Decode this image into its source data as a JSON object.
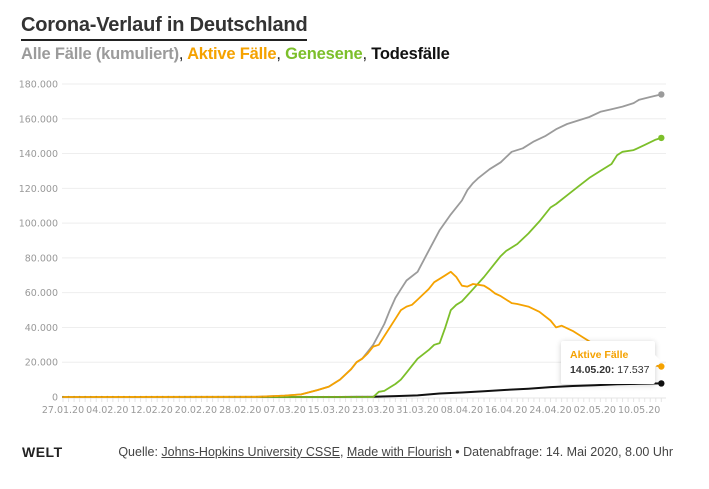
{
  "header": {
    "title": "Corona-Verlauf in Deutschland",
    "subtitle": {
      "all": "Alle Fälle (kumuliert)",
      "active": "Aktive Fälle",
      "recovered": "Genesene",
      "deaths": "Todesfälle",
      "separator": ","
    }
  },
  "colors": {
    "all": "#9b9b9b",
    "active": "#f5a200",
    "recovered": "#7cbf2a",
    "deaths": "#111111",
    "grid": "#eeeeee",
    "axis_text": "#999999"
  },
  "tooltip": {
    "series": "Aktive Fälle",
    "date": "14.05.20",
    "value": "17.537"
  },
  "footer": {
    "logo": "WELT",
    "source_prefix": "Quelle: ",
    "source_link1": "Johns-Hopkins University CSSE",
    "source_sep": ", ",
    "source_link2": "Made with Flourish",
    "source_suffix": " • Datenabfrage: 14. Mai 2020, 8.00 Uhr"
  },
  "chart_data": {
    "type": "line",
    "title": "Corona-Verlauf in Deutschland",
    "xlabel": "",
    "ylabel": "",
    "x_start": "27.01.20",
    "x_end": "14.05.20",
    "x_tick_labels": [
      "27.01.20",
      "04.02.20",
      "12.02.20",
      "20.02.20",
      "28.02.20",
      "07.03.20",
      "15.03.20",
      "23.03.20",
      "31.03.20",
      "08.04.20",
      "16.04.20",
      "24.04.20",
      "02.05.20",
      "10.05.20"
    ],
    "x_tick_days": [
      0,
      8,
      16,
      24,
      32,
      40,
      48,
      56,
      64,
      72,
      80,
      88,
      96,
      104
    ],
    "y_tick_labels": [
      "0",
      "20.000",
      "40.000",
      "60.000",
      "80.000",
      "100.000",
      "120.000",
      "140.000",
      "160.000",
      "180.000"
    ],
    "ylim": [
      0,
      180000
    ],
    "grid": true,
    "legend": "subtitle",
    "series": [
      {
        "name": "Alle Fälle (kumuliert)",
        "key": "all",
        "points": [
          [
            0,
            0
          ],
          [
            35,
            100
          ],
          [
            40,
            800
          ],
          [
            43,
            1500
          ],
          [
            46,
            4000
          ],
          [
            48,
            6000
          ],
          [
            50,
            10000
          ],
          [
            52,
            16000
          ],
          [
            53,
            20000
          ],
          [
            54,
            22000
          ],
          [
            55,
            26000
          ],
          [
            56,
            30000
          ],
          [
            57,
            36000
          ],
          [
            58,
            42000
          ],
          [
            59,
            50000
          ],
          [
            60,
            57000
          ],
          [
            61,
            62000
          ],
          [
            62,
            67000
          ],
          [
            64,
            72000
          ],
          [
            66,
            84000
          ],
          [
            68,
            96000
          ],
          [
            70,
            105000
          ],
          [
            72,
            113000
          ],
          [
            73,
            119000
          ],
          [
            74,
            123000
          ],
          [
            75,
            126000
          ],
          [
            77,
            131000
          ],
          [
            79,
            135000
          ],
          [
            80,
            138000
          ],
          [
            81,
            141000
          ],
          [
            83,
            143000
          ],
          [
            85,
            147000
          ],
          [
            87,
            150000
          ],
          [
            89,
            154000
          ],
          [
            91,
            157000
          ],
          [
            93,
            159000
          ],
          [
            95,
            161000
          ],
          [
            97,
            164000
          ],
          [
            99,
            165500
          ],
          [
            101,
            167000
          ],
          [
            103,
            169000
          ],
          [
            104,
            171000
          ],
          [
            106,
            172500
          ],
          [
            108,
            174000
          ]
        ]
      },
      {
        "name": "Aktive Fälle",
        "key": "active",
        "points": [
          [
            0,
            0
          ],
          [
            35,
            100
          ],
          [
            40,
            800
          ],
          [
            43,
            1500
          ],
          [
            46,
            4000
          ],
          [
            48,
            6000
          ],
          [
            50,
            10000
          ],
          [
            52,
            16000
          ],
          [
            53,
            20000
          ],
          [
            54,
            22000
          ],
          [
            55,
            25000
          ],
          [
            56,
            29000
          ],
          [
            57,
            30000
          ],
          [
            58,
            35000
          ],
          [
            59,
            40000
          ],
          [
            60,
            45000
          ],
          [
            61,
            50000
          ],
          [
            62,
            52000
          ],
          [
            63,
            53000
          ],
          [
            64,
            56000
          ],
          [
            65,
            59000
          ],
          [
            66,
            62000
          ],
          [
            67,
            66000
          ],
          [
            68,
            68000
          ],
          [
            69,
            70000
          ],
          [
            70,
            72000
          ],
          [
            71,
            69000
          ],
          [
            72,
            64000
          ],
          [
            73,
            63500
          ],
          [
            74,
            65000
          ],
          [
            75,
            64500
          ],
          [
            76,
            64000
          ],
          [
            77,
            62000
          ],
          [
            78,
            59500
          ],
          [
            79,
            58000
          ],
          [
            80,
            56000
          ],
          [
            81,
            54000
          ],
          [
            82,
            53500
          ],
          [
            84,
            52000
          ],
          [
            86,
            49000
          ],
          [
            88,
            44000
          ],
          [
            89,
            40000
          ],
          [
            90,
            41000
          ],
          [
            92,
            38000
          ],
          [
            94,
            34000
          ],
          [
            96,
            30000
          ],
          [
            98,
            27000
          ],
          [
            100,
            24000
          ],
          [
            102,
            21000
          ],
          [
            104,
            19500
          ],
          [
            106,
            18500
          ],
          [
            108,
            17537
          ]
        ]
      },
      {
        "name": "Genesene",
        "key": "recovered",
        "points": [
          [
            0,
            0
          ],
          [
            56,
            0
          ],
          [
            57,
            3000
          ],
          [
            58,
            3500
          ],
          [
            59,
            5500
          ],
          [
            60,
            7500
          ],
          [
            61,
            10000
          ],
          [
            62,
            14000
          ],
          [
            63,
            18000
          ],
          [
            64,
            22000
          ],
          [
            66,
            27000
          ],
          [
            67,
            30000
          ],
          [
            68,
            31000
          ],
          [
            69,
            40000
          ],
          [
            70,
            50000
          ],
          [
            71,
            53000
          ],
          [
            72,
            55000
          ],
          [
            74,
            62000
          ],
          [
            76,
            69000
          ],
          [
            78,
            77000
          ],
          [
            79,
            81000
          ],
          [
            80,
            84000
          ],
          [
            82,
            88000
          ],
          [
            84,
            94000
          ],
          [
            86,
            101000
          ],
          [
            88,
            109000
          ],
          [
            89,
            111000
          ],
          [
            91,
            116000
          ],
          [
            93,
            121000
          ],
          [
            95,
            126000
          ],
          [
            97,
            130000
          ],
          [
            99,
            134000
          ],
          [
            100,
            139000
          ],
          [
            101,
            141000
          ],
          [
            103,
            142000
          ],
          [
            105,
            145000
          ],
          [
            107,
            148000
          ],
          [
            108,
            149000
          ]
        ]
      },
      {
        "name": "Todesfälle",
        "key": "deaths",
        "points": [
          [
            0,
            0
          ],
          [
            50,
            0
          ],
          [
            56,
            100
          ],
          [
            60,
            500
          ],
          [
            64,
            900
          ],
          [
            68,
            2000
          ],
          [
            72,
            2600
          ],
          [
            76,
            3300
          ],
          [
            80,
            4100
          ],
          [
            84,
            4800
          ],
          [
            88,
            5700
          ],
          [
            92,
            6300
          ],
          [
            96,
            6800
          ],
          [
            100,
            7300
          ],
          [
            104,
            7600
          ],
          [
            108,
            7800
          ]
        ]
      }
    ]
  }
}
